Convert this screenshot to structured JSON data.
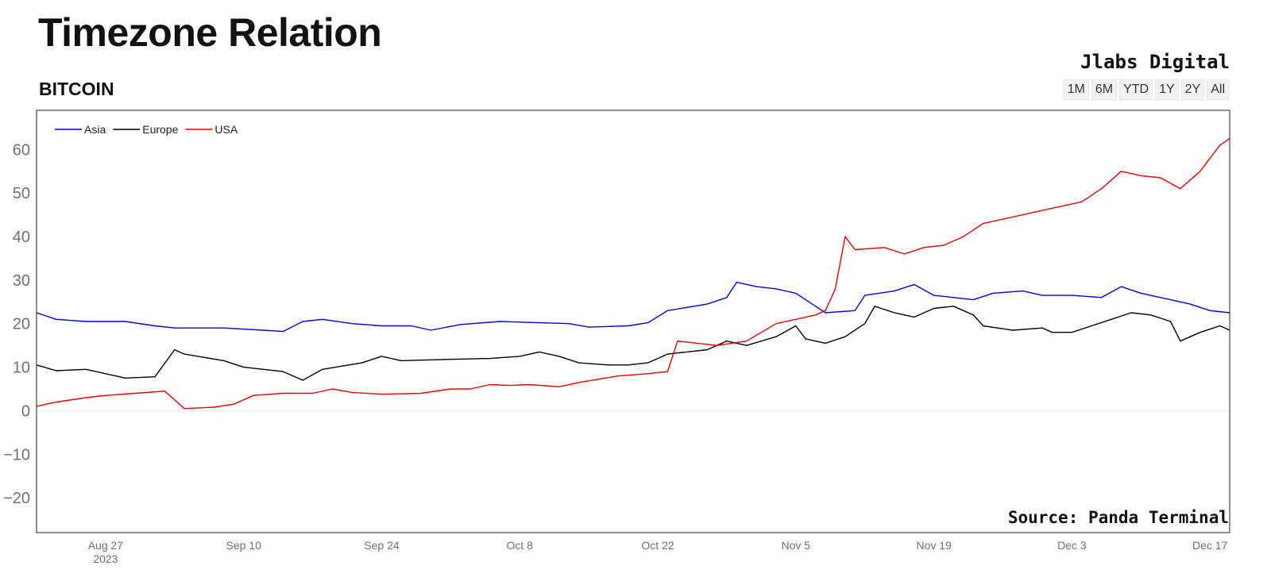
{
  "header": {
    "title": "Timezone Relation",
    "subtitle": "BITCOIN",
    "brand": "Jlabs Digital"
  },
  "range_buttons": [
    "1M",
    "6M",
    "YTD",
    "1Y",
    "2Y",
    "All"
  ],
  "footer": {
    "source": "Source: Panda Terminal"
  },
  "colors": {
    "Asia": "#0000ee",
    "Europe": "#000000",
    "USA": "#ee0000"
  },
  "chart_data": {
    "type": "line",
    "title": "Timezone Relation",
    "subtitle": "BITCOIN",
    "ylim": [
      -28,
      69
    ],
    "xlim": [
      "2023-08-20",
      "2023-12-19"
    ],
    "y_ticks": [
      60,
      50,
      40,
      30,
      20,
      10,
      0,
      -10,
      -20
    ],
    "y_tick_labels": [
      "60",
      "50",
      "40",
      "30",
      "20",
      "10",
      "0",
      "−10",
      "−20"
    ],
    "x_ticks": [
      {
        "date": "2023-08-27",
        "label": "Aug 27",
        "sublabel": "2023"
      },
      {
        "date": "2023-09-10",
        "label": "Sep 10"
      },
      {
        "date": "2023-09-24",
        "label": "Sep 24"
      },
      {
        "date": "2023-10-08",
        "label": "Oct 8"
      },
      {
        "date": "2023-10-22",
        "label": "Oct 22"
      },
      {
        "date": "2023-11-05",
        "label": "Nov 5"
      },
      {
        "date": "2023-11-19",
        "label": "Nov 19"
      },
      {
        "date": "2023-12-03",
        "label": "Dec 3"
      },
      {
        "date": "2023-12-17",
        "label": "Dec 17"
      }
    ],
    "legend_position": "top-left",
    "grid": false,
    "zero_line": true,
    "series": [
      {
        "name": "Asia",
        "color": "#0000ee",
        "points": [
          [
            "2023-08-20",
            22.5
          ],
          [
            "2023-08-22",
            21
          ],
          [
            "2023-08-25",
            20.5
          ],
          [
            "2023-08-29",
            20.5
          ],
          [
            "2023-09-01",
            19.5
          ],
          [
            "2023-09-03",
            19
          ],
          [
            "2023-09-08",
            19
          ],
          [
            "2023-09-12",
            18.5
          ],
          [
            "2023-09-14",
            18.2
          ],
          [
            "2023-09-16",
            20.5
          ],
          [
            "2023-09-18",
            21
          ],
          [
            "2023-09-21",
            20
          ],
          [
            "2023-09-24",
            19.5
          ],
          [
            "2023-09-27",
            19.5
          ],
          [
            "2023-09-29",
            18.5
          ],
          [
            "2023-10-02",
            19.8
          ],
          [
            "2023-10-06",
            20.5
          ],
          [
            "2023-10-10",
            20.2
          ],
          [
            "2023-10-13",
            20
          ],
          [
            "2023-10-15",
            19.2
          ],
          [
            "2023-10-19",
            19.5
          ],
          [
            "2023-10-21",
            20.2
          ],
          [
            "2023-10-23",
            23
          ],
          [
            "2023-10-27",
            24.5
          ],
          [
            "2023-10-29",
            26
          ],
          [
            "2023-10-30",
            29.5
          ],
          [
            "2023-11-01",
            28.5
          ],
          [
            "2023-11-03",
            28
          ],
          [
            "2023-11-05",
            27
          ],
          [
            "2023-11-07",
            24
          ],
          [
            "2023-11-08",
            22.5
          ],
          [
            "2023-11-11",
            23
          ],
          [
            "2023-11-12",
            26.5
          ],
          [
            "2023-11-15",
            27.5
          ],
          [
            "2023-11-17",
            29
          ],
          [
            "2023-11-19",
            26.5
          ],
          [
            "2023-11-23",
            25.5
          ],
          [
            "2023-11-25",
            27
          ],
          [
            "2023-11-28",
            27.5
          ],
          [
            "2023-11-30",
            26.5
          ],
          [
            "2023-12-03",
            26.5
          ],
          [
            "2023-12-06",
            26
          ],
          [
            "2023-12-08",
            28.5
          ],
          [
            "2023-12-10",
            27
          ],
          [
            "2023-12-13",
            25.5
          ],
          [
            "2023-12-15",
            24.5
          ],
          [
            "2023-12-17",
            23
          ],
          [
            "2023-12-19",
            22.5
          ]
        ]
      },
      {
        "name": "Europe",
        "color": "#000000",
        "points": [
          [
            "2023-08-20",
            10.5
          ],
          [
            "2023-08-22",
            9.2
          ],
          [
            "2023-08-25",
            9.5
          ],
          [
            "2023-08-27",
            8.5
          ],
          [
            "2023-08-29",
            7.5
          ],
          [
            "2023-09-01",
            7.8
          ],
          [
            "2023-09-03",
            14
          ],
          [
            "2023-09-04",
            13
          ],
          [
            "2023-09-08",
            11.5
          ],
          [
            "2023-09-10",
            10
          ],
          [
            "2023-09-14",
            9
          ],
          [
            "2023-09-16",
            7
          ],
          [
            "2023-09-18",
            9.5
          ],
          [
            "2023-09-22",
            11
          ],
          [
            "2023-09-24",
            12.5
          ],
          [
            "2023-09-26",
            11.5
          ],
          [
            "2023-10-01",
            11.8
          ],
          [
            "2023-10-05",
            12
          ],
          [
            "2023-10-08",
            12.5
          ],
          [
            "2023-10-10",
            13.5
          ],
          [
            "2023-10-12",
            12.5
          ],
          [
            "2023-10-14",
            11
          ],
          [
            "2023-10-17",
            10.5
          ],
          [
            "2023-10-19",
            10.5
          ],
          [
            "2023-10-21",
            11
          ],
          [
            "2023-10-23",
            13
          ],
          [
            "2023-10-27",
            14
          ],
          [
            "2023-10-29",
            16
          ],
          [
            "2023-10-31",
            15
          ],
          [
            "2023-11-03",
            17
          ],
          [
            "2023-11-05",
            19.5
          ],
          [
            "2023-11-06",
            16.5
          ],
          [
            "2023-11-08",
            15.5
          ],
          [
            "2023-11-10",
            17
          ],
          [
            "2023-11-12",
            20
          ],
          [
            "2023-11-13",
            24
          ],
          [
            "2023-11-15",
            22.5
          ],
          [
            "2023-11-17",
            21.5
          ],
          [
            "2023-11-19",
            23.5
          ],
          [
            "2023-11-21",
            24
          ],
          [
            "2023-11-23",
            22
          ],
          [
            "2023-11-24",
            19.5
          ],
          [
            "2023-11-27",
            18.5
          ],
          [
            "2023-11-30",
            19
          ],
          [
            "2023-12-01",
            18
          ],
          [
            "2023-12-03",
            18
          ],
          [
            "2023-12-05",
            19.5
          ],
          [
            "2023-12-07",
            21
          ],
          [
            "2023-12-09",
            22.5
          ],
          [
            "2023-12-11",
            22
          ],
          [
            "2023-12-13",
            20.5
          ],
          [
            "2023-12-14",
            16
          ],
          [
            "2023-12-16",
            18
          ],
          [
            "2023-12-18",
            19.5
          ],
          [
            "2023-12-19",
            18.5
          ]
        ]
      },
      {
        "name": "USA",
        "color": "#ee0000",
        "points": [
          [
            "2023-08-20",
            1
          ],
          [
            "2023-08-22",
            2
          ],
          [
            "2023-08-25",
            3
          ],
          [
            "2023-08-27",
            3.5
          ],
          [
            "2023-08-30",
            4
          ],
          [
            "2023-09-02",
            4.5
          ],
          [
            "2023-09-04",
            0.5
          ],
          [
            "2023-09-07",
            0.8
          ],
          [
            "2023-09-09",
            1.5
          ],
          [
            "2023-09-11",
            3.5
          ],
          [
            "2023-09-14",
            4
          ],
          [
            "2023-09-17",
            4
          ],
          [
            "2023-09-19",
            5
          ],
          [
            "2023-09-21",
            4.2
          ],
          [
            "2023-09-24",
            3.8
          ],
          [
            "2023-09-28",
            4
          ],
          [
            "2023-10-01",
            5
          ],
          [
            "2023-10-03",
            5
          ],
          [
            "2023-10-05",
            6
          ],
          [
            "2023-10-07",
            5.8
          ],
          [
            "2023-10-09",
            6
          ],
          [
            "2023-10-12",
            5.5
          ],
          [
            "2023-10-14",
            6.5
          ],
          [
            "2023-10-18",
            8
          ],
          [
            "2023-10-21",
            8.5
          ],
          [
            "2023-10-23",
            9
          ],
          [
            "2023-10-24",
            16
          ],
          [
            "2023-10-26",
            15.5
          ],
          [
            "2023-10-28",
            15
          ],
          [
            "2023-10-31",
            16
          ],
          [
            "2023-11-03",
            20
          ],
          [
            "2023-11-05",
            21
          ],
          [
            "2023-11-07",
            22
          ],
          [
            "2023-11-08",
            23
          ],
          [
            "2023-11-09",
            28
          ],
          [
            "2023-11-10",
            40
          ],
          [
            "2023-11-11",
            37
          ],
          [
            "2023-11-14",
            37.5
          ],
          [
            "2023-11-16",
            36
          ],
          [
            "2023-11-18",
            37.5
          ],
          [
            "2023-11-20",
            38
          ],
          [
            "2023-11-22",
            40
          ],
          [
            "2023-11-24",
            43
          ],
          [
            "2023-11-26",
            44
          ],
          [
            "2023-11-28",
            45
          ],
          [
            "2023-11-30",
            46
          ],
          [
            "2023-12-02",
            47
          ],
          [
            "2023-12-04",
            48
          ],
          [
            "2023-12-06",
            51
          ],
          [
            "2023-12-08",
            55
          ],
          [
            "2023-12-10",
            54
          ],
          [
            "2023-12-12",
            53.5
          ],
          [
            "2023-12-14",
            51
          ],
          [
            "2023-12-16",
            55
          ],
          [
            "2023-12-17",
            58
          ],
          [
            "2023-12-18",
            61
          ],
          [
            "2023-12-19",
            62.5
          ]
        ]
      }
    ]
  }
}
